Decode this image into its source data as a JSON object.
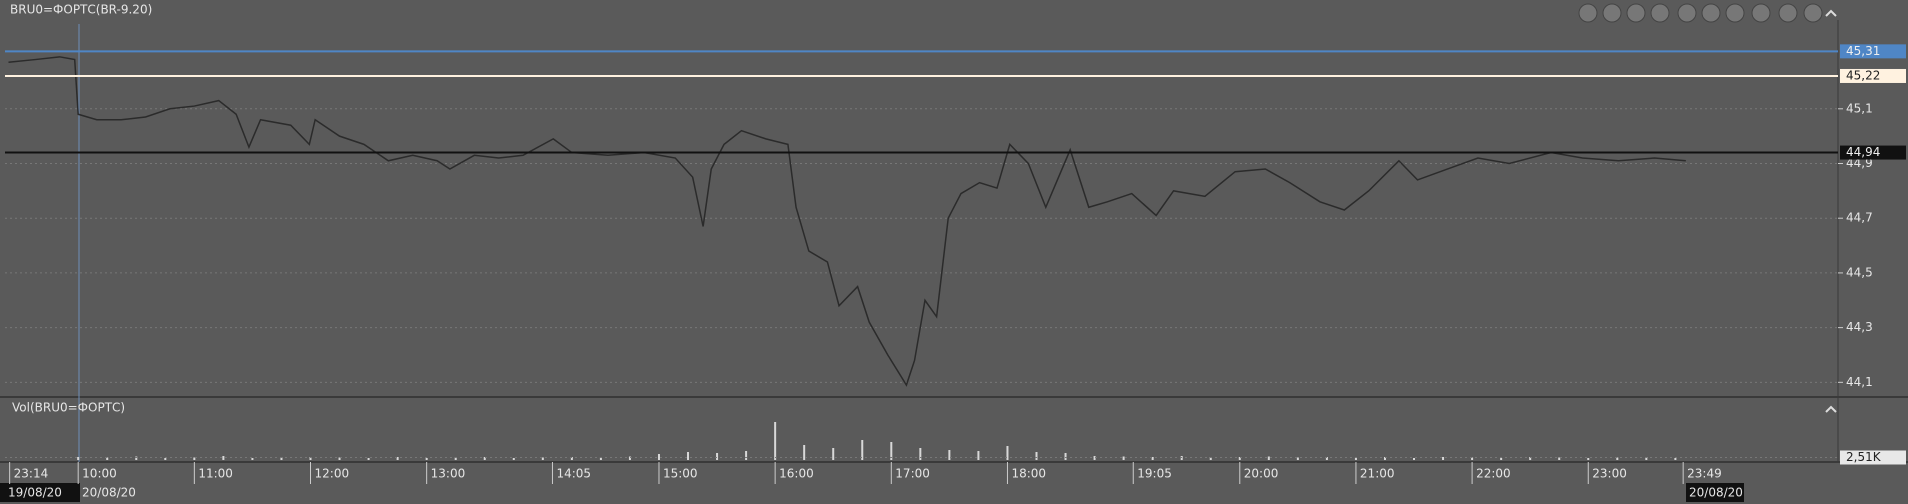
{
  "chart_data": {
    "type": "line",
    "title": "BRU0=ФОРТС(BR-9.20)",
    "volume_title": "Vol(BRU0=ФОРТС)",
    "x": [
      9.4,
      9.63,
      9.84,
      9.97,
      10.0,
      10.16,
      10.37,
      10.58,
      10.79,
      11.0,
      11.21,
      11.36,
      11.47,
      11.57,
      11.83,
      11.99,
      12.04,
      12.25,
      12.46,
      12.67,
      12.88,
      13.09,
      13.2,
      13.41,
      13.62,
      13.83,
      14.09,
      14.25,
      14.56,
      14.87,
      15.14,
      15.29,
      15.38,
      15.45,
      15.56,
      15.71,
      15.92,
      16.11,
      16.18,
      16.29,
      16.45,
      16.55,
      16.71,
      16.81,
      16.97,
      17.13,
      17.2,
      17.29,
      17.39,
      17.49,
      17.6,
      17.76,
      17.91,
      18.02,
      18.18,
      18.33,
      18.54,
      18.7,
      18.86,
      19.07,
      19.28,
      19.43,
      19.7,
      19.96,
      20.22,
      20.43,
      20.69,
      20.9,
      21.11,
      21.37,
      21.53,
      21.79,
      22.05,
      22.32,
      22.68,
      22.95,
      23.26,
      23.57,
      23.84
    ],
    "series": [
      {
        "name": "BRU0=ФОРТС(BR-9.20)",
        "color": "#2b2b2b",
        "values": [
          45.27,
          45.28,
          45.29,
          45.28,
          45.08,
          45.06,
          45.06,
          45.07,
          45.1,
          45.11,
          45.13,
          45.08,
          44.96,
          45.06,
          45.04,
          44.97,
          45.06,
          45.0,
          44.97,
          44.91,
          44.93,
          44.91,
          44.88,
          44.93,
          44.92,
          44.93,
          44.99,
          44.94,
          44.93,
          44.94,
          44.92,
          44.85,
          44.67,
          44.88,
          44.97,
          45.02,
          44.99,
          44.97,
          44.74,
          44.58,
          44.54,
          44.38,
          44.45,
          44.32,
          44.2,
          44.09,
          44.18,
          44.4,
          44.34,
          44.7,
          44.79,
          44.83,
          44.81,
          44.97,
          44.9,
          44.74,
          44.95,
          44.74,
          44.76,
          44.79,
          44.71,
          44.8,
          44.78,
          44.87,
          44.88,
          44.83,
          44.76,
          44.73,
          44.8,
          44.91,
          44.84,
          44.88,
          44.92,
          44.9,
          44.94,
          44.92,
          44.91,
          44.92,
          44.91
        ]
      }
    ],
    "xlim": [
      9.37,
      25.15
    ],
    "ylim": [
      44.05,
      45.41
    ],
    "yticks": [
      {
        "value": 44.1,
        "label": "44,1"
      },
      {
        "value": 44.3,
        "label": "44,3"
      },
      {
        "value": 44.5,
        "label": "44,5"
      },
      {
        "value": 44.7,
        "label": "44,7"
      },
      {
        "value": 44.9,
        "label": "44,9"
      },
      {
        "value": 45.1,
        "label": "45,1"
      }
    ],
    "xticks": [
      {
        "value": 9.41,
        "label": "23:14"
      },
      {
        "value": 10,
        "label": "10:00"
      },
      {
        "value": 11,
        "label": "11:00"
      },
      {
        "value": 12,
        "label": "12:00"
      },
      {
        "value": 13,
        "label": "13:00"
      },
      {
        "value": 14.083,
        "label": "14:05"
      },
      {
        "value": 15,
        "label": "15:00"
      },
      {
        "value": 16,
        "label": "16:00"
      },
      {
        "value": 17,
        "label": "17:00"
      },
      {
        "value": 18,
        "label": "18:00"
      },
      {
        "value": 19.083,
        "label": "19:05"
      },
      {
        "value": 20,
        "label": "20:00"
      },
      {
        "value": 21,
        "label": "21:00"
      },
      {
        "value": 22,
        "label": "22:00"
      },
      {
        "value": 23,
        "label": "23:00"
      },
      {
        "value": 23.817,
        "label": "23:49"
      }
    ],
    "dates": [
      "19/08/20",
      "20/08/20",
      "20/08/20"
    ],
    "levels": [
      {
        "value": 45.31,
        "label": "45,31",
        "color": "#4f86c6"
      },
      {
        "value": 45.22,
        "label": "45,22",
        "color": "#fff2e0"
      },
      {
        "value": 44.94,
        "label": "44,94",
        "color": "#111111"
      }
    ],
    "grid": true,
    "volume": {
      "color": "#d8d8d8",
      "x": [
        10,
        10.25,
        10.5,
        10.75,
        11,
        11.25,
        11.5,
        11.75,
        12,
        12.25,
        12.5,
        12.75,
        13,
        13.25,
        13.5,
        13.75,
        14,
        14.25,
        14.5,
        14.75,
        15,
        15.25,
        15.5,
        15.75,
        16,
        16.25,
        16.5,
        16.75,
        17,
        17.25,
        17.5,
        17.75,
        18,
        18.25,
        18.5,
        18.75,
        19,
        19.25,
        19.5,
        19.75,
        20,
        20.25,
        20.5,
        20.75,
        21,
        21.25,
        21.5,
        21.75,
        22,
        22.25,
        22.5,
        22.75,
        23,
        23.25,
        23.5,
        23.75
      ],
      "values": [
        3000,
        2500,
        3500,
        2000,
        2500,
        4000,
        2000,
        2500,
        3000,
        2500,
        2000,
        3000,
        2000,
        2500,
        3000,
        2000,
        2500,
        3000,
        2500,
        3500,
        6000,
        8000,
        7000,
        9000,
        38000,
        15000,
        12000,
        20000,
        18000,
        12000,
        10000,
        9000,
        14000,
        8000,
        7000,
        4000,
        3500,
        3000,
        4000,
        3000,
        3000,
        3500,
        2500,
        3000,
        2500,
        3000,
        2000,
        3000,
        2500,
        2000,
        3000,
        2500,
        2000,
        2500,
        3000,
        2000
      ],
      "ylim": [
        0,
        40000
      ],
      "yticks": [
        {
          "value": 2510,
          "label": "2,51K"
        }
      ]
    }
  }
}
